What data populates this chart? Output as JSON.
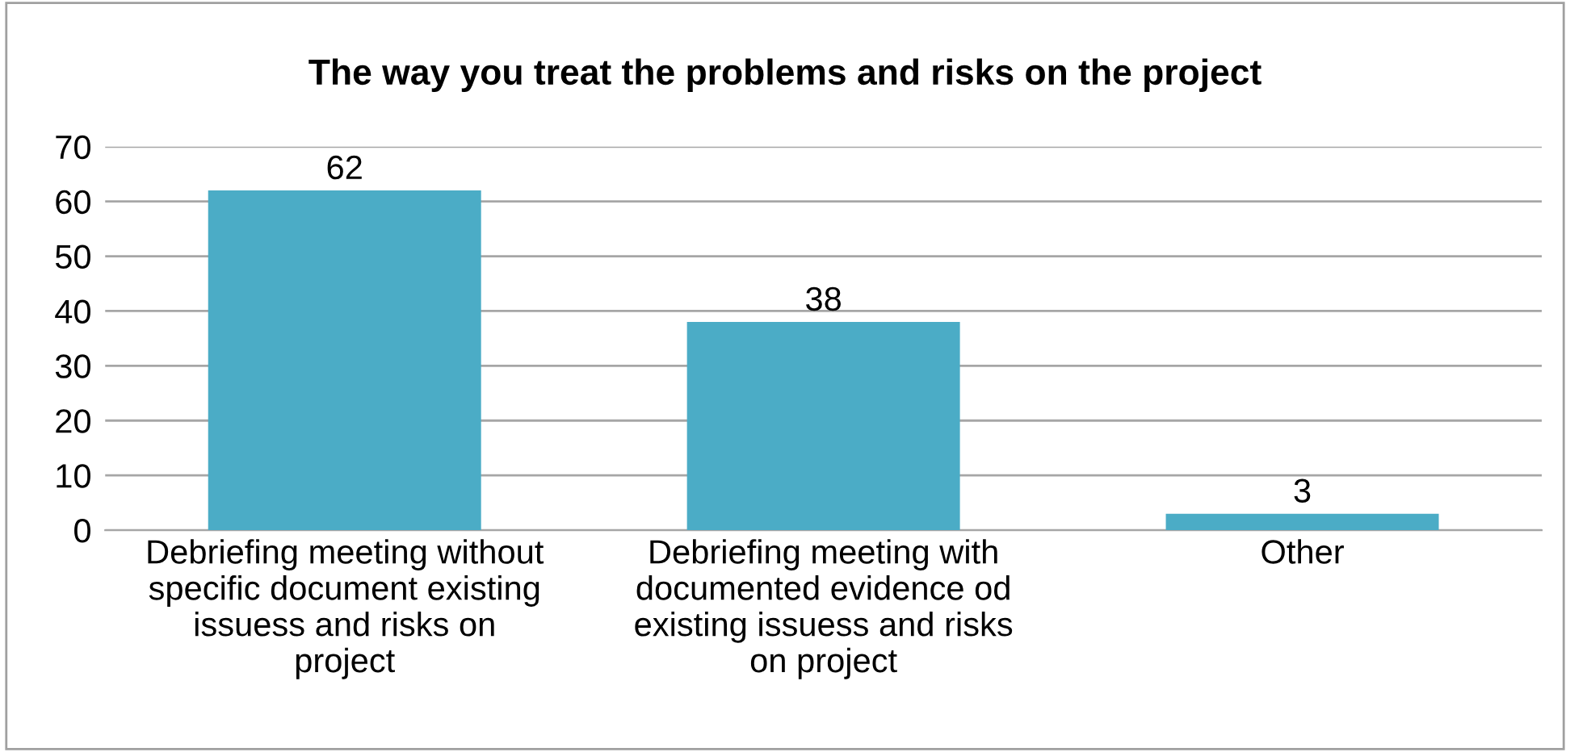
{
  "chart_data": {
    "type": "bar",
    "title": "The way you treat the problems and risks on the project",
    "categories": [
      "Debriefing meeting without\nspecific document existing\nissuess and risks on\nproject",
      "Debriefing meeting with\ndocumented evidence od\nexisting issuess and risks\non project",
      "Other"
    ],
    "values": [
      62,
      38,
      3
    ],
    "color": "#4bacc6",
    "ylim": [
      0,
      70
    ],
    "yticks": [
      0,
      10,
      20,
      30,
      40,
      50,
      60,
      70
    ],
    "grid": "y",
    "data_labels": true
  }
}
